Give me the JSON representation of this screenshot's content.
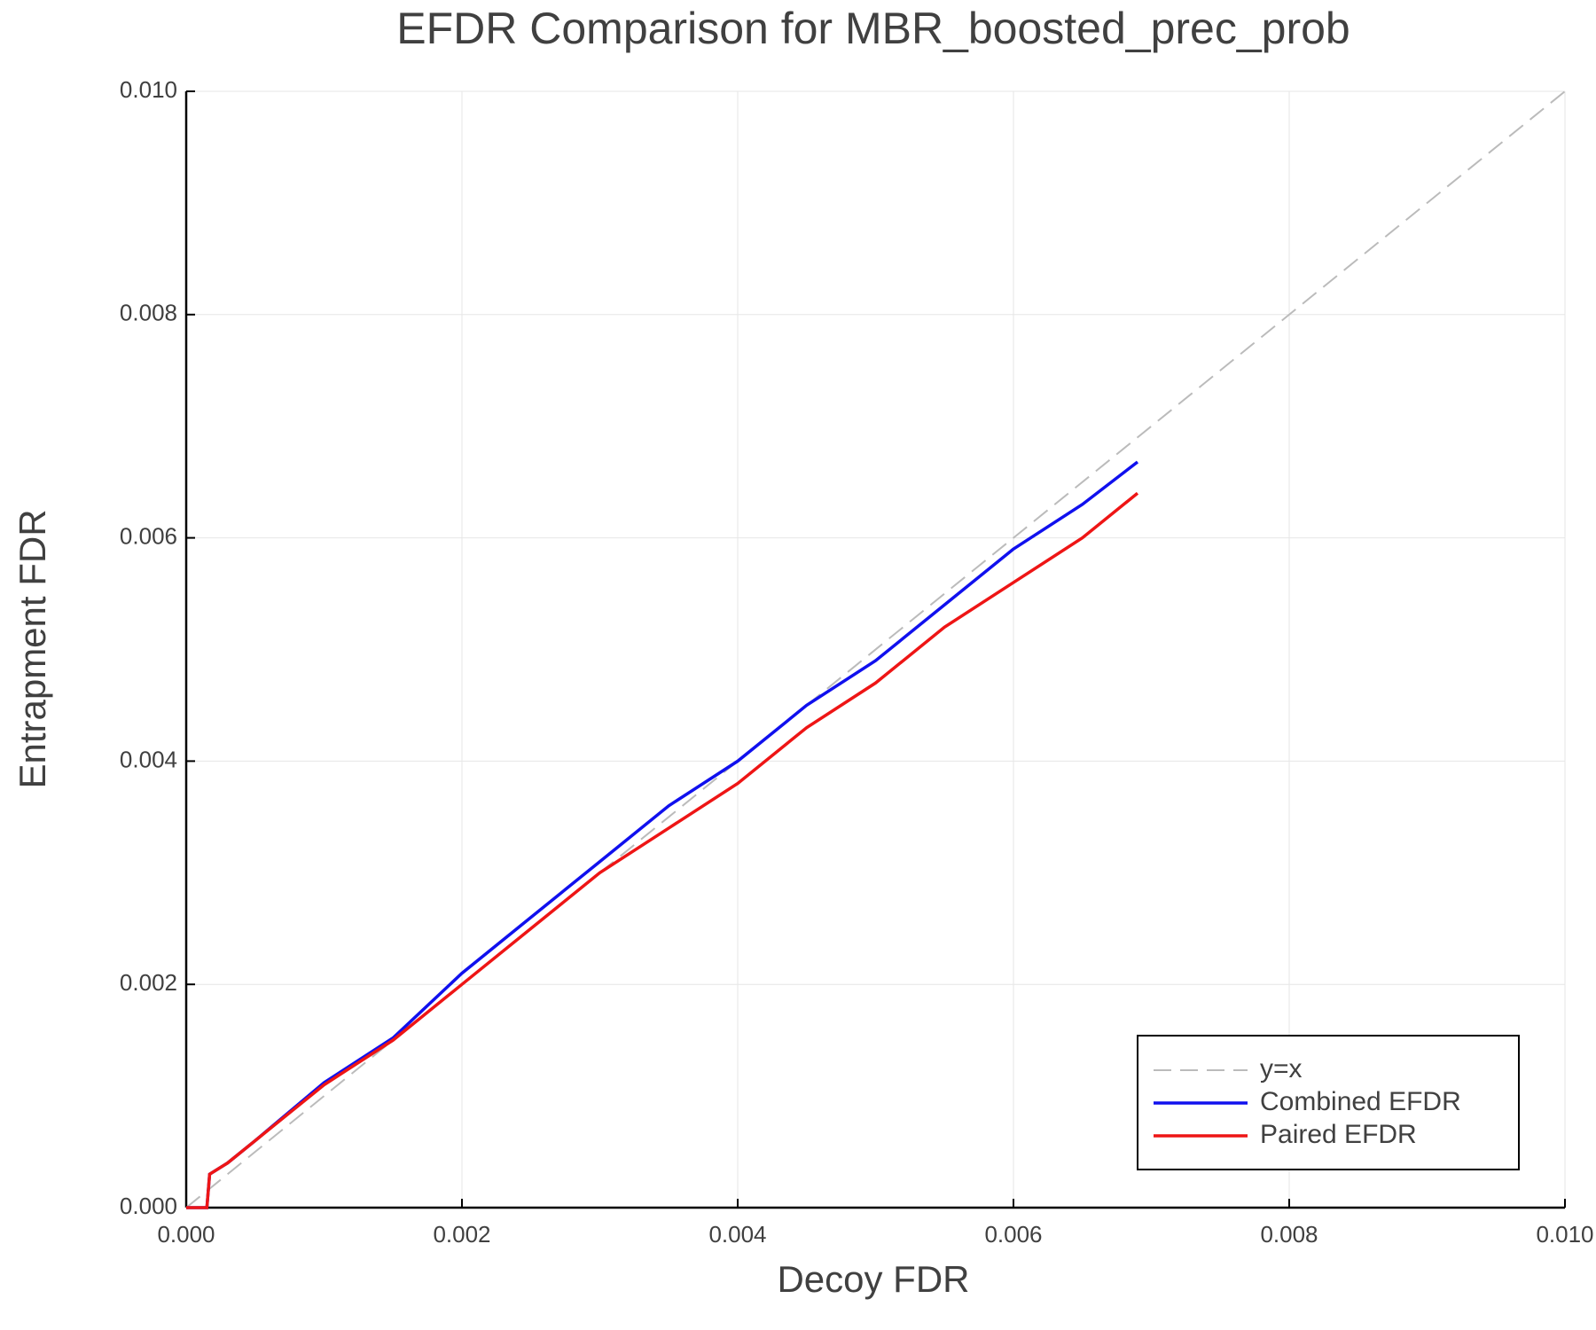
{
  "chart_data": {
    "type": "line",
    "title": "EFDR Comparison for MBR_boosted_prec_prob",
    "xlabel": "Decoy FDR",
    "ylabel": "Entrapment FDR",
    "xlim": [
      0,
      0.01
    ],
    "ylim": [
      0,
      0.01
    ],
    "xticks": [
      {
        "value": 0,
        "label": "0.000"
      },
      {
        "value": 0.002,
        "label": "0.002"
      },
      {
        "value": 0.004,
        "label": "0.004"
      },
      {
        "value": 0.006,
        "label": "0.006"
      },
      {
        "value": 0.008,
        "label": "0.008"
      },
      {
        "value": 0.01,
        "label": "0.010"
      }
    ],
    "yticks": [
      {
        "value": 0,
        "label": "0.000"
      },
      {
        "value": 0.002,
        "label": "0.002"
      },
      {
        "value": 0.004,
        "label": "0.004"
      },
      {
        "value": 0.006,
        "label": "0.006"
      },
      {
        "value": 0.008,
        "label": "0.008"
      },
      {
        "value": 0.01,
        "label": "0.010"
      }
    ],
    "grid": true,
    "legend": "bottom-right",
    "series": [
      {
        "name": "y=x",
        "color": "#bbbbbb",
        "dashed": true,
        "x": [
          0,
          0.01
        ],
        "values": [
          0,
          0.01
        ]
      },
      {
        "name": "Combined EFDR",
        "color": "#1010ee",
        "x": [
          0,
          0.00015,
          0.00017,
          0.0003,
          0.0005,
          0.001,
          0.0015,
          0.002,
          0.0025,
          0.003,
          0.0035,
          0.004,
          0.0045,
          0.005,
          0.0055,
          0.006,
          0.0065,
          0.0069
        ],
        "values": [
          0,
          0,
          0.0003,
          0.0004,
          0.0006,
          0.00112,
          0.00152,
          0.0021,
          0.0026,
          0.0031,
          0.0036,
          0.004,
          0.0045,
          0.0049,
          0.0054,
          0.0059,
          0.0063,
          0.00668
        ]
      },
      {
        "name": "Paired EFDR",
        "color": "#ee1515",
        "x": [
          0,
          0.00015,
          0.00017,
          0.0003,
          0.0005,
          0.001,
          0.0015,
          0.002,
          0.0025,
          0.003,
          0.0035,
          0.004,
          0.0045,
          0.005,
          0.0055,
          0.006,
          0.0065,
          0.0069
        ],
        "values": [
          0,
          0,
          0.0003,
          0.0004,
          0.0006,
          0.0011,
          0.0015,
          0.002,
          0.0025,
          0.003,
          0.0034,
          0.0038,
          0.0043,
          0.0047,
          0.0052,
          0.0056,
          0.006,
          0.0064
        ]
      }
    ]
  }
}
